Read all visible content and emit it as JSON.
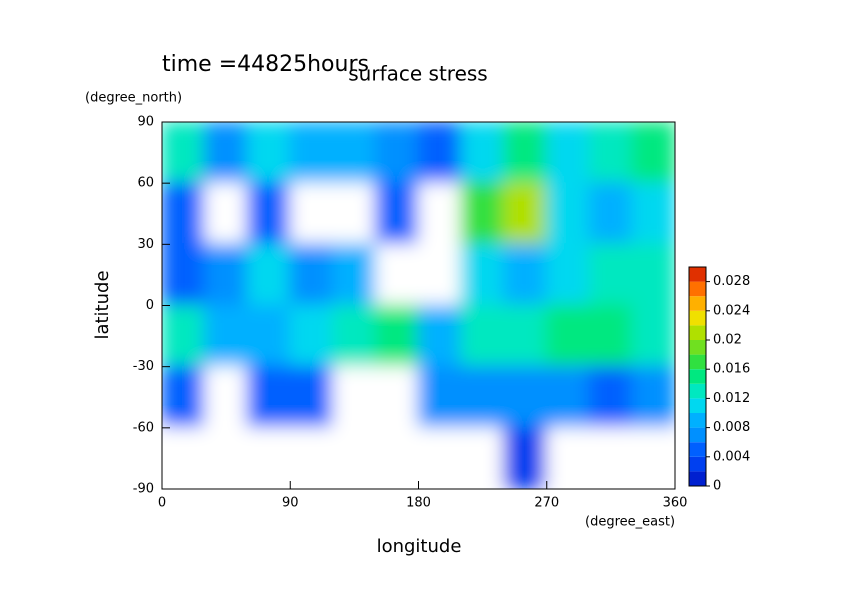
{
  "chart_data": {
    "type": "contour",
    "title": "surface stress",
    "subtitle": "time =44825hours",
    "x_label": "longitude",
    "x_unit": "(degree_east)",
    "y_label": "latitude",
    "y_unit": "(degree_north)",
    "x": [
      15,
      45,
      75,
      105,
      135,
      165,
      195,
      225,
      255,
      285,
      315,
      345
    ],
    "y": [
      75,
      45,
      15,
      -15,
      -45,
      -75
    ],
    "z": [
      [
        0.012,
        0.006,
        0.01,
        0.008,
        0.008,
        0.006,
        0.004,
        0.01,
        0.014,
        0.01,
        0.012,
        0.014
      ],
      [
        0.004,
        0,
        0.004,
        0,
        0,
        0.004,
        0,
        0.016,
        0.02,
        0.01,
        0.008,
        0.01
      ],
      [
        0.004,
        0.006,
        0.01,
        0.006,
        0.008,
        0,
        0,
        0.01,
        0.008,
        0.01,
        0.012,
        0.012
      ],
      [
        0.012,
        0.008,
        0.008,
        0.01,
        0.012,
        0.014,
        0.008,
        0.012,
        0.012,
        0.014,
        0.014,
        0.012
      ],
      [
        0.004,
        0,
        0.004,
        0.004,
        0,
        0,
        0.006,
        0.006,
        0.006,
        0.006,
        0.004,
        0.006
      ],
      [
        0,
        0,
        0,
        0,
        0,
        0,
        0,
        0,
        0.002,
        0,
        0,
        0
      ]
    ],
    "xlim": [
      0,
      360
    ],
    "xticks": [
      0,
      90,
      180,
      270,
      360
    ],
    "ylim": [
      -90,
      90
    ],
    "yticks": [
      -90,
      -60,
      -30,
      0,
      30,
      60,
      90
    ],
    "clim": [
      0,
      0.03
    ],
    "cticks": [
      0,
      0.004,
      0.008,
      0.012,
      0.016,
      0.02,
      0.024,
      0.028
    ],
    "colors": [
      "#0020d0",
      "#0040f0",
      "#0060ff",
      "#0090ff",
      "#00b0ff",
      "#00d8f0",
      "#00e8c0",
      "#00e880",
      "#30e040",
      "#70e020",
      "#b0e000",
      "#f0e000",
      "#ffb000",
      "#ff7000",
      "#e03000"
    ]
  }
}
